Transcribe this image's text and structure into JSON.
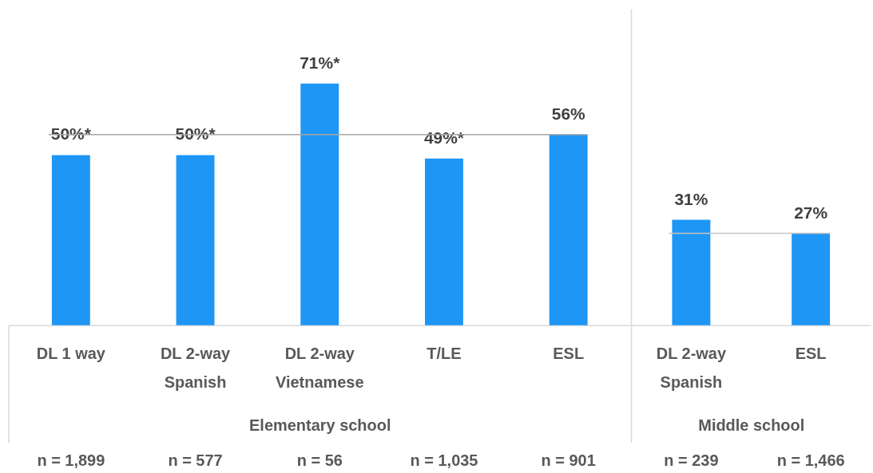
{
  "chart_data": [
    {
      "type": "bar",
      "xlabel": "Elementary school",
      "categories": [
        "DL 1 way",
        "DL 2-way Spanish",
        "DL 2-way Vietnamese",
        "T/LE",
        "ESL"
      ],
      "values": [
        50,
        50,
        71,
        49,
        56
      ],
      "color": "#1e96f5",
      "value_labels": [
        "50%*",
        "50%*",
        "71%*",
        "49%*",
        "56%"
      ],
      "ref_lines": [
        {
          "axis": "y",
          "value": 56,
          "color": "#a6a6a6"
        }
      ],
      "annotations": [
        "n = 1,899",
        "n = 577",
        "n = 56",
        "n = 1,035",
        "n = 901"
      ]
    },
    {
      "type": "bar",
      "xlabel": "Middle school",
      "categories": [
        "DL 2-way Spanish",
        "ESL"
      ],
      "values": [
        31,
        27
      ],
      "color": "#1e96f5",
      "value_labels": [
        "31%",
        "27%"
      ],
      "ref_lines": [
        {
          "axis": "y",
          "value": 27,
          "color": "#c4c4c4"
        }
      ],
      "annotations": [
        "n = 239",
        "n = 1,466"
      ]
    }
  ]
}
